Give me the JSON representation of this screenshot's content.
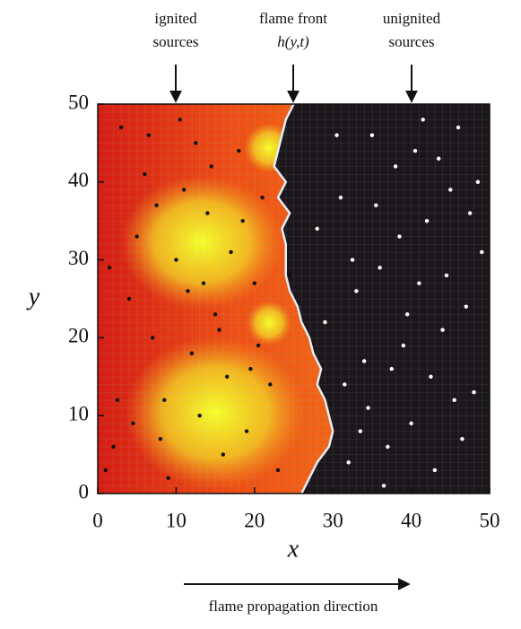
{
  "chart_data": {
    "type": "scatter",
    "xlabel": "x",
    "ylabel": "y",
    "xlim": [
      0,
      50
    ],
    "ylim": [
      0,
      50
    ],
    "xticks": [
      0,
      10,
      20,
      30,
      40,
      50
    ],
    "yticks": [
      0,
      10,
      20,
      30,
      40,
      50
    ],
    "annotations": [
      [
        "ignited",
        "sources"
      ],
      [
        "flame front",
        "h(y,t)"
      ],
      [
        "unignited",
        "sources"
      ]
    ],
    "direction": "flame propagation direction",
    "front": {
      "x": [
        26,
        27,
        28,
        29.5,
        30,
        29.5,
        29,
        28,
        28.5,
        27.5,
        27,
        26,
        25.5,
        24.5,
        24,
        24,
        24,
        23.5,
        24.5,
        23,
        24,
        22.5,
        23,
        23.5,
        24,
        25
      ],
      "y": [
        0,
        2,
        4,
        6,
        8,
        10,
        12,
        14,
        16,
        18,
        20,
        22,
        24,
        26,
        28,
        30,
        32,
        34,
        36,
        38,
        40,
        42,
        44,
        46,
        48,
        50
      ]
    },
    "series": [
      {
        "color": "#111111",
        "x": [
          1,
          2.5,
          4,
          6,
          8,
          10,
          12,
          14,
          16,
          18,
          20,
          22,
          3,
          5,
          7,
          9,
          11,
          13,
          15,
          17,
          19,
          21,
          1.5,
          6.5,
          11.5,
          16.5,
          20.5,
          2,
          8.5,
          14.5,
          18.5,
          23,
          24.5,
          4.5,
          10.5,
          13.5,
          19.5,
          12.5,
          7.5,
          15.5
        ],
        "y": [
          3,
          12,
          25,
          41,
          7,
          30,
          18,
          36,
          5,
          44,
          27,
          14,
          47,
          33,
          20,
          2,
          39,
          10,
          23,
          31,
          8,
          38,
          29,
          46,
          26,
          15,
          19,
          6,
          12,
          42,
          35,
          3,
          28,
          9,
          48,
          27,
          16,
          45,
          37,
          21
        ]
      },
      {
        "color": "#ffffff",
        "x": [
          32,
          34,
          36,
          38,
          40,
          42,
          44,
          46,
          48,
          49,
          31,
          33,
          35,
          37,
          39,
          41,
          43,
          45,
          47,
          30.5,
          34.5,
          38.5,
          42.5,
          46.5,
          32.5,
          36.5,
          40.5,
          44.5,
          48.5,
          29,
          35.5,
          41.5,
          47.5,
          33.5,
          39.5,
          45.5,
          37.5,
          43.5,
          28,
          31.5
        ],
        "y": [
          4,
          17,
          29,
          42,
          9,
          35,
          21,
          47,
          13,
          31,
          38,
          26,
          46,
          6,
          19,
          27,
          3,
          39,
          24,
          46,
          11,
          33,
          15,
          7,
          30,
          1,
          44,
          28,
          40,
          22,
          37,
          48,
          36,
          8,
          23,
          12,
          16,
          43,
          34,
          14
        ]
      }
    ]
  }
}
